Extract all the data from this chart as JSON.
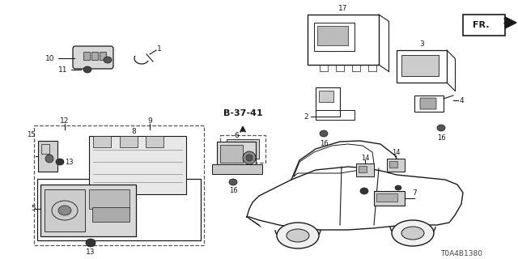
{
  "bg": "#ffffff",
  "fw": 6.4,
  "fh": 3.2,
  "dpi": 100,
  "diagram_id": "T0A4B1380"
}
